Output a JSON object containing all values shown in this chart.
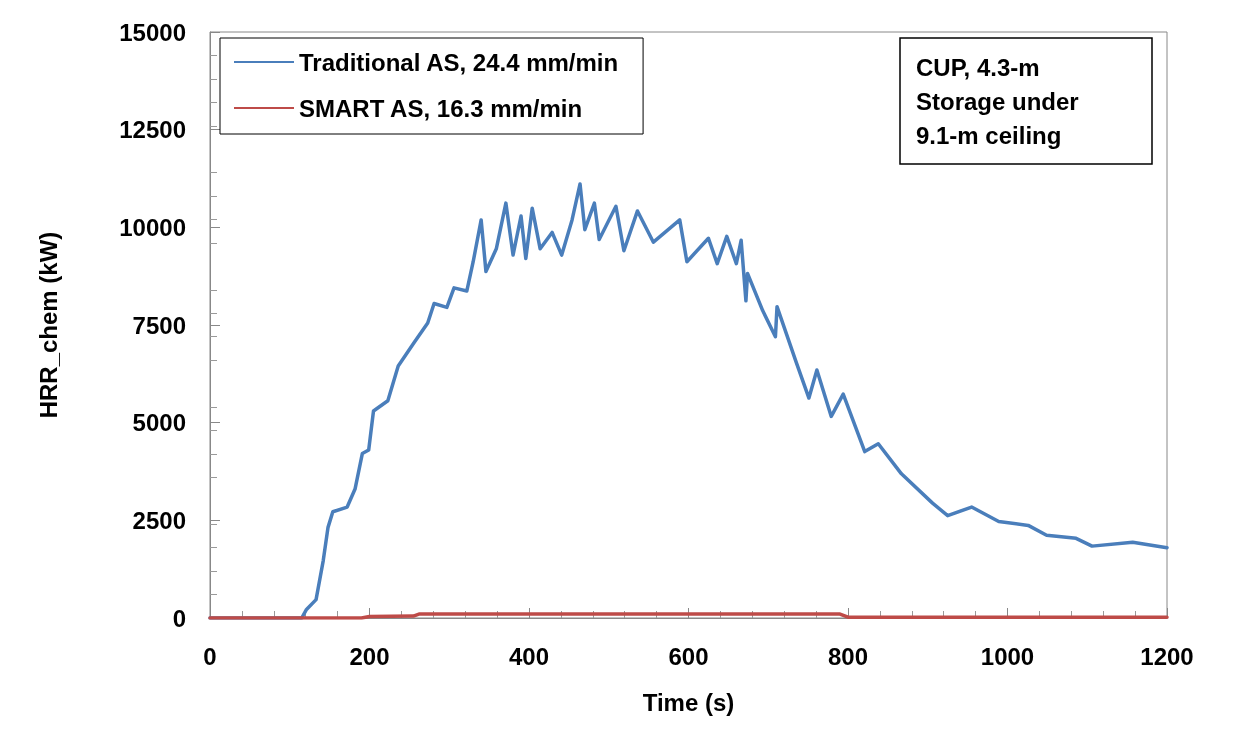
{
  "chart_data": {
    "type": "line",
    "xlabel": "Time (s)",
    "ylabel": "HRR_chem (kW)",
    "xlim": [
      0,
      1200
    ],
    "xticks": [
      0,
      200,
      400,
      600,
      800,
      1000,
      1200
    ],
    "ylim": [
      0,
      15000
    ],
    "yticks": [
      0,
      2500,
      5000,
      7500,
      10000,
      12500,
      15000
    ],
    "grid": false,
    "legend": "top left",
    "marker": "none",
    "line_style": "solid",
    "annotations": [
      "CUP, 4.3-m Storage under 9.1-m ceiling"
    ],
    "series": [
      {
        "name": "Traditional AS, 24.4 mm/min",
        "color": "#4a7ebb",
        "x": [
          0,
          60,
          115,
          121,
          133,
          142,
          148,
          154,
          172,
          182,
          191,
          199,
          205,
          223,
          236,
          256,
          273,
          281,
          297,
          306,
          322,
          330,
          340,
          346,
          359,
          371,
          380,
          390,
          396,
          404,
          414,
          429,
          441,
          454,
          464,
          470,
          482,
          488,
          509,
          519,
          536,
          556,
          589,
          598,
          625,
          636,
          648,
          660,
          666,
          672,
          674,
          693,
          709,
          711,
          735,
          751,
          761,
          779,
          794,
          821,
          838,
          867,
          906,
          925,
          955,
          989,
          1026,
          1049,
          1086,
          1106,
          1157,
          1200
        ],
        "values": [
          0,
          0,
          0,
          220,
          470,
          1470,
          2320,
          2720,
          2840,
          3310,
          4210,
          4300,
          5300,
          5560,
          6450,
          7050,
          7550,
          8050,
          7950,
          8450,
          8370,
          9120,
          10190,
          8870,
          9450,
          10620,
          9290,
          10290,
          9200,
          10490,
          9450,
          9870,
          9290,
          10190,
          11110,
          9940,
          10620,
          9690,
          10540,
          9400,
          10420,
          9620,
          10190,
          9120,
          9720,
          9070,
          9770,
          9070,
          9670,
          8120,
          8820,
          7870,
          7200,
          7970,
          6550,
          5630,
          6350,
          5160,
          5730,
          4260,
          4460,
          3690,
          2940,
          2620,
          2840,
          2470,
          2370,
          2120,
          2040,
          1840,
          1940,
          1800
        ]
      },
      {
        "name": "SMART AS, 16.3 mm/min",
        "color": "#be4b48",
        "x": [
          0,
          190,
          200,
          255,
          262,
          790,
          800,
          1200
        ],
        "values": [
          0,
          0,
          40,
          50,
          100,
          100,
          20,
          20
        ]
      }
    ]
  }
}
